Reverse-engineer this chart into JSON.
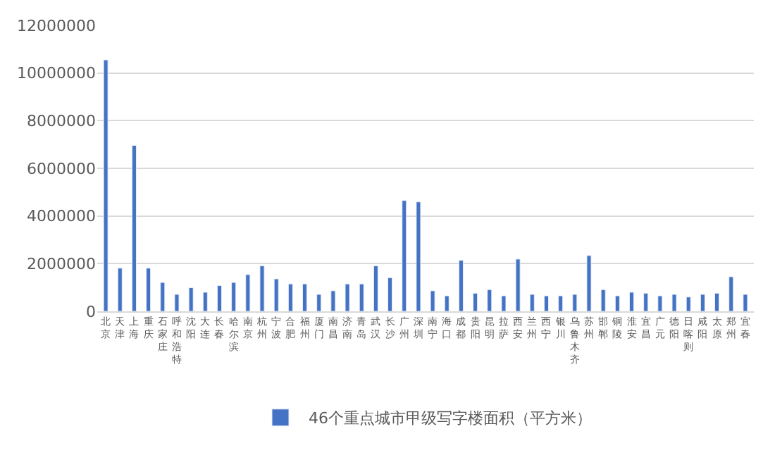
{
  "chart_data": {
    "type": "bar",
    "categories": [
      "北京",
      "天津",
      "上海",
      "重庆",
      "石家庄",
      "呼和浩特",
      "沈阳",
      "大连",
      "长春",
      "哈尔滨",
      "南京",
      "杭州",
      "宁波",
      "合肥",
      "福州",
      "厦门",
      "南昌",
      "济南",
      "青岛",
      "武汉",
      "长沙",
      "广州",
      "深圳",
      "南宁",
      "海口",
      "成都",
      "贵阳",
      "昆明",
      "拉萨",
      "西安",
      "兰州",
      "西宁",
      "银川",
      "乌鲁木齐",
      "苏州",
      "邯郸",
      "铜陵",
      "淮安",
      "宜昌",
      "广元",
      "德阳",
      "日喀则",
      "咸阳",
      "太原",
      "郑州",
      "宜春"
    ],
    "series": [
      {
        "name": "46个重点城市甲级写字楼面积（平方米）",
        "color": "#4472c4",
        "values": [
          10550000,
          1810000,
          6960000,
          1810000,
          1210000,
          710000,
          990000,
          800000,
          1080000,
          1210000,
          1540000,
          1910000,
          1360000,
          1150000,
          1150000,
          710000,
          860000,
          1150000,
          1150000,
          1910000,
          1410000,
          4650000,
          4590000,
          860000,
          650000,
          2140000,
          760000,
          910000,
          650000,
          2190000,
          710000,
          650000,
          650000,
          710000,
          2340000,
          910000,
          650000,
          800000,
          760000,
          650000,
          710000,
          600000,
          710000,
          760000,
          1450000,
          710000
        ]
      }
    ],
    "ylim": [
      0,
      12000000
    ],
    "yticks": [
      0,
      2000000,
      4000000,
      6000000,
      8000000,
      10000000,
      12000000
    ],
    "grid": "y",
    "legend": "bottom"
  }
}
